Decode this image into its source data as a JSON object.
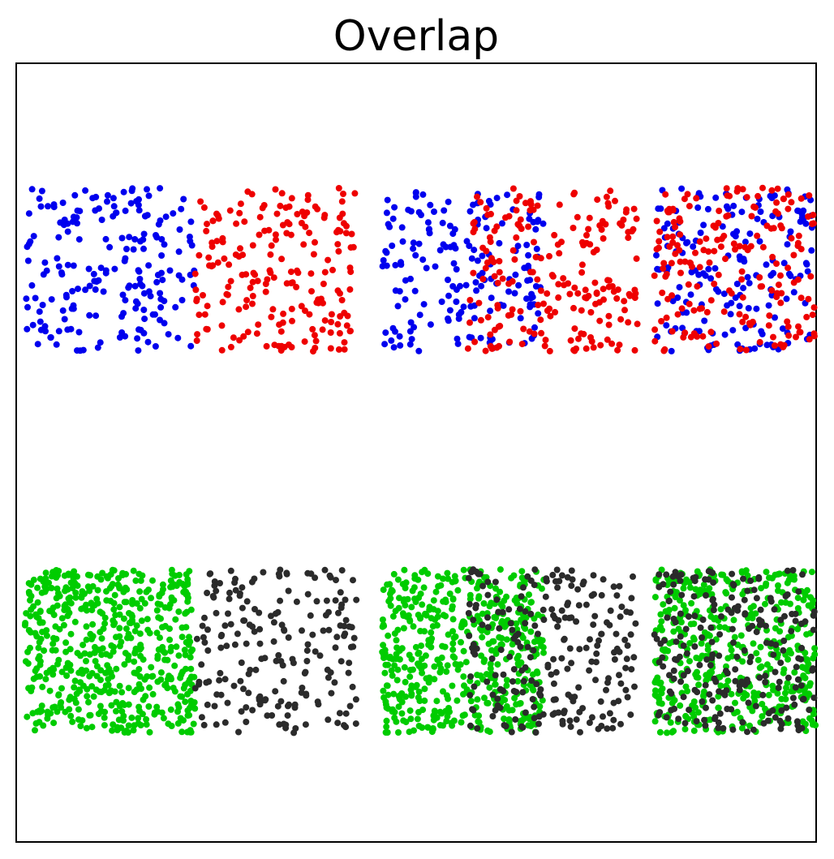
{
  "chart_data": {
    "type": "scatter",
    "title": "Overlap",
    "xlabel": "",
    "ylabel": "",
    "xlim": [
      0,
      9.4
    ],
    "ylim": [
      0,
      10
    ],
    "grid": false,
    "legend": "none",
    "axis_ticks": false,
    "panels": [
      {
        "name": "",
        "y_range": [
          6.3,
          8.4
        ],
        "groups": [
          {
            "colors": [
              "#0000ee",
              "#ee0000"
            ],
            "first_x": [
              0.1,
              2.1
            ],
            "second_x": [
              2.1,
              4.0
            ],
            "n_first": 200,
            "n_second": 200
          },
          {
            "colors": [
              "#0000ee",
              "#ee0000"
            ],
            "first_x": [
              4.3,
              6.2
            ],
            "second_x": [
              5.3,
              7.3
            ],
            "n_first": 180,
            "n_second": 200
          },
          {
            "colors": [
              "#0000ee",
              "#ee0000"
            ],
            "first_x": [
              7.5,
              9.4
            ],
            "second_x": [
              7.5,
              9.4
            ],
            "n_first": 170,
            "n_second": 190
          }
        ]
      },
      {
        "name": "",
        "y_range": [
          1.4,
          3.5
        ],
        "groups": [
          {
            "colors": [
              "#00cc00",
              "#2b2b2b"
            ],
            "first_x": [
              0.1,
              2.1
            ],
            "second_x": [
              2.1,
              4.0
            ],
            "n_first": 550,
            "n_second": 200
          },
          {
            "colors": [
              "#00cc00",
              "#2b2b2b"
            ],
            "first_x": [
              4.3,
              6.2
            ],
            "second_x": [
              5.3,
              7.3
            ],
            "n_first": 500,
            "n_second": 230
          },
          {
            "colors": [
              "#00cc00",
              "#2b2b2b"
            ],
            "first_x": [
              7.5,
              9.4
            ],
            "second_x": [
              7.5,
              9.4
            ],
            "n_first": 450,
            "n_second": 220
          }
        ]
      }
    ]
  }
}
